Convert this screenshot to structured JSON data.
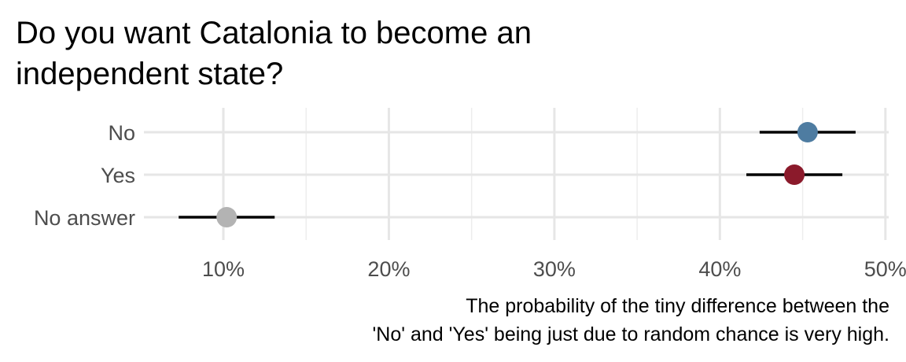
{
  "chart_data": {
    "type": "scatter",
    "title_lines": [
      "Do you want Catalonia to become an",
      "independent state?"
    ],
    "categories": [
      "No",
      "Yes",
      "No answer"
    ],
    "values": [
      45.3,
      44.5,
      10.2
    ],
    "ci_low": [
      42.4,
      41.6,
      7.3
    ],
    "ci_high": [
      48.2,
      47.4,
      13.1
    ],
    "colors": [
      "#4e7ca1",
      "#8b1a2b",
      "#b3b3b3"
    ],
    "xlim": [
      5.2,
      50.2
    ],
    "x_ticks": [
      10,
      20,
      30,
      40,
      50
    ],
    "x_tick_labels": [
      "10%",
      "20%",
      "30%",
      "40%",
      "50%"
    ],
    "caption_lines": [
      "The probability of the tiny difference between the",
      "'No' and 'Yes' being just due to random chance is very high."
    ],
    "grid": true
  }
}
